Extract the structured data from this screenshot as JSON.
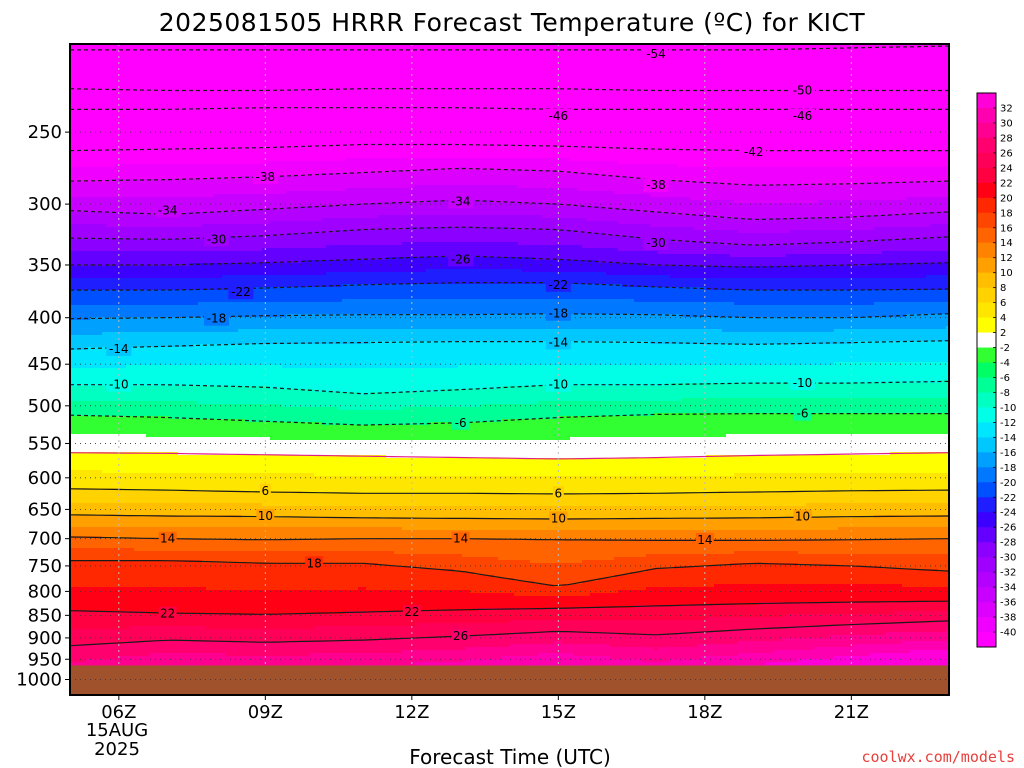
{
  "chart_data": {
    "type": "contour",
    "title": "2025081505 HRRR Forecast Temperature (ºC) for KICT",
    "xlabel": "Forecast Time (UTC)",
    "credit": "coolwx.com/models",
    "x_ticks": [
      "06Z",
      "09Z",
      "12Z",
      "15Z",
      "18Z",
      "21Z"
    ],
    "x_hours": [
      6,
      9,
      12,
      15,
      18,
      21
    ],
    "x_range_hours": [
      5,
      23
    ],
    "date_label": [
      "15AUG",
      "2025"
    ],
    "y_ticks": [
      250,
      300,
      350,
      400,
      450,
      500,
      550,
      600,
      650,
      700,
      750,
      800,
      850,
      900,
      950,
      1000
    ],
    "ylim_hPa": [
      200,
      1040
    ],
    "y_scale": "log",
    "y_reversed": true,
    "surface_pressure_hPa": 965,
    "surface_color": "#a0522d",
    "colorbar": {
      "labels": [
        32,
        30,
        28,
        26,
        24,
        22,
        20,
        18,
        16,
        14,
        12,
        10,
        8,
        6,
        4,
        2,
        -2,
        -4,
        -6,
        -8,
        -10,
        -12,
        -14,
        -16,
        -18,
        -20,
        -22,
        -24,
        -26,
        -28,
        -30,
        -32,
        -34,
        -36,
        -38,
        -40
      ],
      "levels": [
        -42,
        -40,
        -38,
        -36,
        -34,
        -32,
        -30,
        -28,
        -26,
        -24,
        -22,
        -20,
        -18,
        -16,
        -14,
        -12,
        -10,
        -8,
        -6,
        -4,
        -2,
        2,
        4,
        6,
        8,
        10,
        12,
        14,
        16,
        18,
        20,
        22,
        24,
        26,
        28,
        30,
        32,
        34
      ],
      "colors": [
        "#ff00ff",
        "#f000ff",
        "#dc00ff",
        "#c800ff",
        "#b400ff",
        "#a000ff",
        "#8c00ff",
        "#6400ff",
        "#3c00ff",
        "#1e1eff",
        "#0050ff",
        "#0078ff",
        "#00a0ff",
        "#00c8ff",
        "#00e6ff",
        "#00ffe6",
        "#00ffc0",
        "#00ff96",
        "#00ff64",
        "#32ff32",
        "#ffffff",
        "#ffff00",
        "#ffe600",
        "#ffd200",
        "#ffbe00",
        "#ffa000",
        "#ff8200",
        "#ff6400",
        "#ff4600",
        "#ff2800",
        "#ff0014",
        "#ff0040",
        "#ff0058",
        "#ff006e",
        "#ff0090",
        "#ff00b0",
        "#ff00d8"
      ]
    },
    "contours": [
      {
        "label": -54,
        "pressure_hPa": [
          203,
          203,
          203,
          203,
          203,
          203,
          203,
          203,
          202,
          201
        ],
        "label_pos": [
          [
            17.0,
            205
          ]
        ]
      },
      {
        "label": -50,
        "pressure_hPa": [
          224,
          225,
          225,
          224,
          224,
          224,
          225,
          225,
          225,
          225
        ],
        "label_pos": [
          [
            20.0,
            225
          ]
        ]
      },
      {
        "label": -46,
        "pressure_hPa": [
          236,
          236,
          235,
          235,
          235,
          236,
          236,
          236,
          236,
          236
        ],
        "label_pos": [
          [
            15.0,
            240
          ],
          [
            20.0,
            240
          ]
        ]
      },
      {
        "label": -42,
        "pressure_hPa": [
          262,
          261,
          260,
          258,
          258,
          259,
          261,
          262,
          262,
          262
        ],
        "label_pos": [
          [
            19.0,
            263
          ]
        ]
      },
      {
        "label": -38,
        "pressure_hPa": [
          283,
          282,
          280,
          277,
          274,
          276,
          282,
          286,
          285,
          283
        ],
        "label_pos": [
          [
            9.0,
            280
          ],
          [
            17.0,
            286
          ]
        ]
      },
      {
        "label": -34,
        "pressure_hPa": [
          305,
          308,
          304,
          300,
          297,
          300,
          306,
          312,
          310,
          306
        ],
        "label_pos": [
          [
            7.0,
            305
          ],
          [
            13.0,
            298
          ]
        ]
      },
      {
        "label": -30,
        "pressure_hPa": [
          327,
          328,
          325,
          320,
          318,
          320,
          328,
          333,
          330,
          326
        ],
        "label_pos": [
          [
            8.0,
            328
          ],
          [
            17.0,
            331
          ]
        ]
      },
      {
        "label": -26,
        "pressure_hPa": [
          350,
          350,
          348,
          345,
          342,
          345,
          350,
          352,
          350,
          348
        ],
        "label_pos": [
          [
            13.0,
            345
          ]
        ]
      },
      {
        "label": -22,
        "pressure_hPa": [
          373,
          373,
          371,
          368,
          366,
          366,
          370,
          373,
          373,
          372
        ],
        "label_pos": [
          [
            8.5,
            375
          ],
          [
            15.0,
            368
          ]
        ]
      },
      {
        "label": -18,
        "pressure_hPa": [
          401,
          400,
          398,
          397,
          397,
          396,
          397,
          400,
          400,
          396
        ],
        "label_pos": [
          [
            8.0,
            401
          ],
          [
            15.0,
            396
          ]
        ]
      },
      {
        "label": -14,
        "pressure_hPa": [
          433,
          430,
          427,
          426,
          425,
          425,
          426,
          428,
          426,
          424
        ],
        "label_pos": [
          [
            6.0,
            433
          ],
          [
            15.0,
            426
          ]
        ]
      },
      {
        "label": -10,
        "pressure_hPa": [
          474,
          474,
          477,
          485,
          480,
          474,
          474,
          472,
          472,
          470
        ],
        "label_pos": [
          [
            6.0,
            474
          ],
          [
            15.0,
            474
          ],
          [
            20.0,
            472
          ]
        ]
      },
      {
        "label": -6,
        "pressure_hPa": [
          512,
          515,
          520,
          525,
          522,
          515,
          511,
          510,
          510,
          510
        ],
        "label_pos": [
          [
            13.0,
            522
          ],
          [
            20.0,
            510
          ]
        ]
      },
      {
        "label": 2,
        "pressure_hPa": [
          563,
          564,
          566,
          568,
          570,
          572,
          570,
          567,
          565,
          563
        ],
        "label_pos": []
      },
      {
        "label": 6,
        "pressure_hPa": [
          617,
          619,
          622,
          624,
          624,
          625,
          624,
          622,
          620,
          619
        ],
        "label_pos": [
          [
            9.0,
            620
          ],
          [
            15.0,
            624
          ]
        ]
      },
      {
        "label": 10,
        "pressure_hPa": [
          659,
          661,
          662,
          664,
          665,
          666,
          665,
          664,
          662,
          661
        ],
        "label_pos": [
          [
            9.0,
            661
          ],
          [
            15.0,
            665
          ],
          [
            20.0,
            662
          ]
        ]
      },
      {
        "label": 14,
        "pressure_hPa": [
          697,
          700,
          702,
          700,
          700,
          702,
          703,
          703,
          702,
          700
        ],
        "label_pos": [
          [
            7.0,
            700
          ],
          [
            13.0,
            700
          ],
          [
            18.0,
            702
          ]
        ]
      },
      {
        "label": 18,
        "pressure_hPa": [
          740,
          740,
          745,
          745,
          760,
          790,
          755,
          745,
          750,
          760
        ],
        "label_pos": [
          [
            10.0,
            745
          ]
        ]
      },
      {
        "label": 22,
        "pressure_hPa": [
          840,
          845,
          848,
          843,
          838,
          835,
          830,
          825,
          822,
          820
        ],
        "label_pos": [
          [
            7.0,
            846
          ],
          [
            12.0,
            843
          ]
        ]
      },
      {
        "label": 26,
        "pressure_hPa": [
          918,
          905,
          910,
          905,
          896,
          885,
          893,
          880,
          870,
          862
        ],
        "label_pos": [
          [
            13.0,
            896
          ]
        ]
      }
    ]
  }
}
